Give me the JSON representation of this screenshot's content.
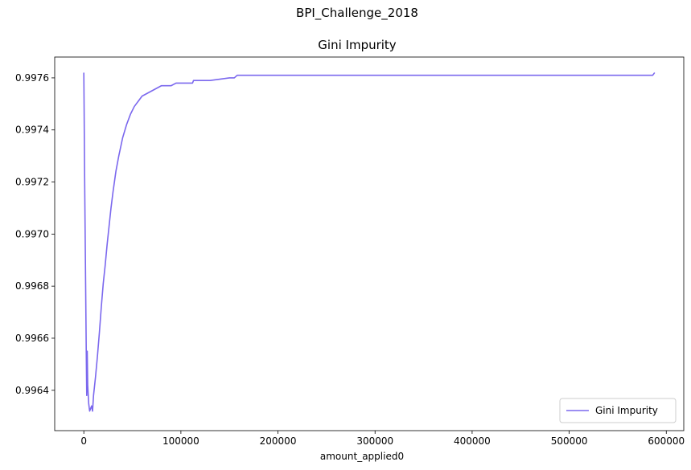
{
  "chart_data": {
    "type": "line",
    "suptitle": "BPI_Challenge_2018",
    "title": "Gini Impurity",
    "xlabel": "amount_applied0",
    "ylabel": "",
    "xlim": [
      -30000,
      618000
    ],
    "ylim": [
      0.996245,
      0.99768
    ],
    "xticks": [
      0,
      100000,
      200000,
      300000,
      400000,
      500000,
      600000
    ],
    "yticks": [
      0.9964,
      0.9966,
      0.9968,
      0.997,
      0.9972,
      0.9974,
      0.9976
    ],
    "legend": {
      "position": "lower-right",
      "entries": [
        "Gini Impurity"
      ]
    },
    "grid": false,
    "series": [
      {
        "name": "Gini Impurity",
        "color": "#7b68ee",
        "x": [
          0,
          300,
          700,
          1000,
          1500,
          2000,
          2500,
          3000,
          3500,
          4000,
          5000,
          6000,
          7000,
          8000,
          9000,
          10000,
          12000,
          14000,
          16000,
          18000,
          20000,
          22000,
          24000,
          26000,
          28000,
          30000,
          33000,
          36000,
          40000,
          44000,
          48000,
          52000,
          56000,
          60000,
          65000,
          70000,
          75000,
          80000,
          85000,
          90000,
          95000,
          100000,
          112000,
          113000,
          130000,
          150000,
          155000,
          158000,
          200000,
          300000,
          400000,
          500000,
          586000,
          588000
        ],
        "y": [
          0.99762,
          0.99748,
          0.99728,
          0.99715,
          0.99695,
          0.99675,
          0.99655,
          0.99638,
          0.99655,
          0.99642,
          0.99635,
          0.99632,
          0.99633,
          0.99634,
          0.99632,
          0.99638,
          0.99645,
          0.99653,
          0.99662,
          0.99672,
          0.99681,
          0.99688,
          0.99696,
          0.99703,
          0.9971,
          0.99716,
          0.99724,
          0.9973,
          0.99737,
          0.99742,
          0.99746,
          0.99749,
          0.99751,
          0.99753,
          0.99754,
          0.99755,
          0.99756,
          0.99757,
          0.99757,
          0.99757,
          0.99758,
          0.99758,
          0.99758,
          0.99759,
          0.99759,
          0.9976,
          0.9976,
          0.99761,
          0.99761,
          0.99761,
          0.99761,
          0.99761,
          0.99761,
          0.99762
        ]
      }
    ]
  }
}
